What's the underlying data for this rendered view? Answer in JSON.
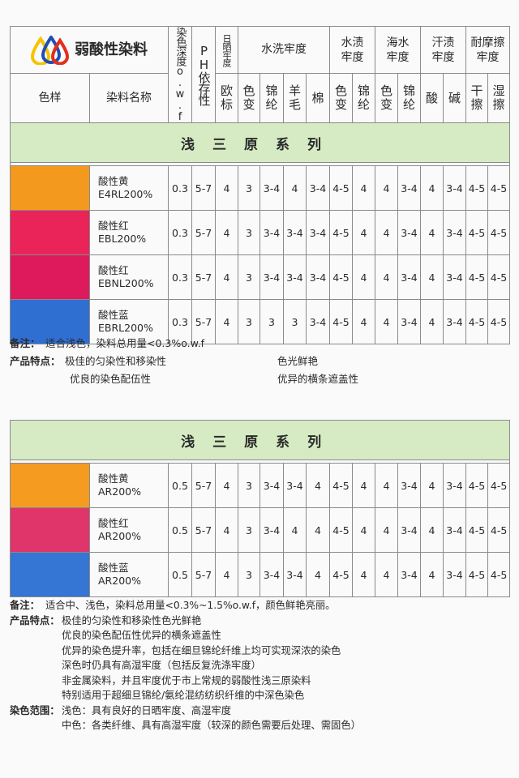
{
  "header": {
    "logo_text": "弱酸性染料",
    "depth": "染色深度o.w.f",
    "ph": "PH依存性",
    "light": "日晒牢度",
    "wash": "水洗牢度",
    "water": "水渍牢度",
    "sea": "海水牢度",
    "sweat": "汗渍牢度",
    "rub": "耐摩擦牢度",
    "swatch": "色样",
    "name": "染料名称",
    "sub": [
      "欧标",
      "色变",
      "锦纶",
      "羊毛",
      "棉",
      "色变",
      "锦纶",
      "色变",
      "锦纶",
      "酸",
      "碱",
      "干擦",
      "湿擦"
    ]
  },
  "tables": [
    {
      "band": "浅三原系列",
      "rows": [
        {
          "color": "#f39a1e",
          "name": "酸性黄",
          "code": "E4RL200%",
          "values": [
            "0.3",
            "5-7",
            "4",
            "3",
            "3-4",
            "4",
            "3-4",
            "4-5",
            "4",
            "4",
            "3-4",
            "4",
            "3-4",
            "4-5",
            "4-5"
          ]
        },
        {
          "color": "#ea2359",
          "name": "酸性红",
          "code": "EBL200%",
          "values": [
            "0.3",
            "5-7",
            "4",
            "3",
            "3-4",
            "3-4",
            "3-4",
            "4-5",
            "4",
            "4",
            "3-4",
            "4",
            "3-4",
            "4-5",
            "4-5"
          ]
        },
        {
          "color": "#df1a5c",
          "name": "酸性红",
          "code": "EBNL200%",
          "values": [
            "0.3",
            "5-7",
            "4",
            "3",
            "3-4",
            "3-4",
            "3-4",
            "4-5",
            "4",
            "4",
            "3-4",
            "4",
            "3-4",
            "4-5",
            "4-5"
          ]
        },
        {
          "color": "#2f6fd2",
          "name": "酸性蓝",
          "code": "EBRL200%",
          "values": [
            "0.3",
            "5-7",
            "4",
            "3",
            "3",
            "3",
            "3-4",
            "4-5",
            "4",
            "4",
            "3-4",
            "4",
            "3-4",
            "4-5",
            "4-5"
          ]
        }
      ]
    },
    {
      "band": "浅三原系列",
      "rows": [
        {
          "color": "#f49b20",
          "name": "酸性黄",
          "code": "AR200%",
          "values": [
            "0.5",
            "5-7",
            "4",
            "3",
            "3-4",
            "3-4",
            "4",
            "4-5",
            "4",
            "4",
            "3-4",
            "4",
            "3-4",
            "4-5",
            "4-5"
          ]
        },
        {
          "color": "#df356b",
          "name": "酸性红",
          "code": "AR200%",
          "values": [
            "0.5",
            "5-7",
            "4",
            "3",
            "3-4",
            "4",
            "4",
            "4-5",
            "4",
            "4",
            "3-4",
            "4",
            "3-4",
            "4-5",
            "4-5"
          ]
        },
        {
          "color": "#3575d3",
          "name": "酸性蓝",
          "code": "AR200%",
          "values": [
            "0.5",
            "5-7",
            "4",
            "3",
            "3-4",
            "3-4",
            "4",
            "4-5",
            "4",
            "4",
            "3-4",
            "4",
            "3-4",
            "4-5",
            "4-5"
          ]
        }
      ]
    }
  ],
  "notes1": {
    "remark_label": "备注：",
    "remark": "适合浅色，染料总用量<0.3%o.w.f",
    "features_label": "产品特点：",
    "features": [
      "极佳的匀染性和移染性",
      "色光鲜艳",
      "优良的染色配伍性",
      "优异的横条遮盖性"
    ]
  },
  "notes2": {
    "remark_label": "备注：",
    "remark": "适合中、浅色，染料总用量<0.3%~1.5%o.w.f，颜色鲜艳亮丽。",
    "features_label": "产品特点：",
    "features": [
      "极佳的匀染性和移染性色光鲜艳",
      "优良的染色配伍性优异的横条遮盖性",
      "优异的染色提升率，包括在细旦锦纶纤维上均可实现深浓的染色",
      "深色时仍具有高湿牢度（包括反复洗涤牢度）",
      "非金属染料，并且牢度优于市上常规的弱酸性浅三原染料",
      "特别适用于超细旦锦纶/氨纶混纺纺织纤维的中深色染色"
    ],
    "range_label": "染色范围：",
    "range": [
      "浅色：具有良好的日晒牢度、高湿牢度",
      "中色：各类纤维、具有高湿牢度（较深的颜色需要后处理、需固色）"
    ]
  }
}
